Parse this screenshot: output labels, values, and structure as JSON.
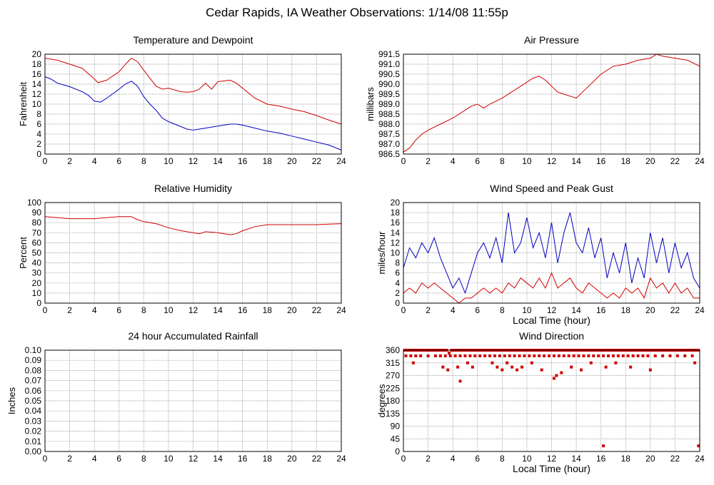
{
  "page": {
    "title": "Cedar Rapids, IA Weather Observations: 1/14/08 11:55p"
  },
  "colors": {
    "temperature": "#d00000",
    "dewpoint": "#0000c0",
    "grid": "#888888"
  },
  "chart_data": [
    {
      "id": "temp",
      "type": "line",
      "title": "Temperature and Dewpoint",
      "ylabel": "Fahrenheit",
      "xlabel": "",
      "xlim": [
        0,
        24
      ],
      "ylim": [
        0,
        20
      ],
      "xticks": [
        0,
        2,
        4,
        6,
        8,
        10,
        12,
        14,
        16,
        18,
        20,
        22,
        24
      ],
      "yticks": [
        0,
        2,
        4,
        6,
        8,
        10,
        12,
        14,
        16,
        18,
        20
      ],
      "ytick_decimals": 0,
      "grid": true,
      "series": [
        {
          "color": "#d00000",
          "x": [
            0,
            1,
            2,
            3,
            3.8,
            4.3,
            5,
            6,
            6.6,
            7,
            7.5,
            8,
            8.5,
            9,
            9.5,
            10,
            11,
            11.5,
            12,
            12.5,
            13,
            13.5,
            14,
            15,
            15.5,
            16,
            17,
            18,
            19,
            20,
            21,
            22,
            23,
            24
          ],
          "y": [
            19.2,
            18.8,
            18,
            17.2,
            15.5,
            14.3,
            14.8,
            16.5,
            18.2,
            19.2,
            18.5,
            16.8,
            15.2,
            13.6,
            13,
            13.2,
            12.5,
            12.4,
            12.5,
            13,
            14.2,
            13,
            14.5,
            14.8,
            14.2,
            13.2,
            11.2,
            10,
            9.6,
            9,
            8.5,
            7.7,
            6.8,
            6
          ]
        },
        {
          "color": "#0000c0",
          "x": [
            0,
            0.5,
            1,
            2,
            3,
            3.5,
            4,
            4.5,
            5,
            6,
            6.5,
            7,
            7.5,
            8,
            8.5,
            9,
            9.5,
            10,
            11,
            11.5,
            12,
            13,
            14,
            15,
            15.5,
            16,
            17,
            18,
            19,
            20,
            21,
            22,
            23,
            24
          ],
          "y": [
            15.5,
            15,
            14.2,
            13.5,
            12.5,
            11.8,
            10.6,
            10.4,
            11.2,
            13,
            14,
            14.6,
            13.6,
            11.5,
            10,
            8.8,
            7.2,
            6.5,
            5.5,
            5,
            4.8,
            5.2,
            5.6,
            6,
            6,
            5.8,
            5.2,
            4.6,
            4.2,
            3.6,
            3,
            2.4,
            1.8,
            0.8
          ]
        }
      ]
    },
    {
      "id": "pressure",
      "type": "line",
      "title": "Air Pressure",
      "ylabel": "millibars",
      "xlabel": "",
      "xlim": [
        0,
        24
      ],
      "ylim": [
        986.5,
        991.5
      ],
      "xticks": [
        0,
        2,
        4,
        6,
        8,
        10,
        12,
        14,
        16,
        18,
        20,
        22,
        24
      ],
      "yticks": [
        986.5,
        987.0,
        987.5,
        988.0,
        988.5,
        989.0,
        989.5,
        990.0,
        990.5,
        991.0,
        991.5
      ],
      "ytick_decimals": 1,
      "grid": true,
      "series": [
        {
          "color": "#d00000",
          "x": [
            0,
            0.5,
            1,
            1.5,
            2,
            3,
            4,
            5,
            5.5,
            6,
            6.5,
            7,
            8,
            9,
            10,
            10.5,
            11,
            11.5,
            12,
            12.5,
            13,
            13.5,
            14,
            14.5,
            15,
            16,
            17,
            18,
            19,
            20,
            20.5,
            21,
            22,
            23,
            24
          ],
          "y": [
            986.6,
            986.8,
            987.2,
            987.5,
            987.7,
            988.0,
            988.3,
            988.7,
            988.9,
            989.0,
            988.8,
            989.0,
            989.3,
            989.7,
            990.1,
            990.3,
            990.4,
            990.2,
            989.9,
            989.6,
            989.5,
            989.4,
            989.3,
            989.6,
            989.9,
            990.5,
            990.9,
            991.0,
            991.2,
            991.3,
            991.5,
            991.4,
            991.3,
            991.2,
            990.9
          ]
        }
      ]
    },
    {
      "id": "humidity",
      "type": "line",
      "title": "Relative Humidity",
      "ylabel": "Percent",
      "xlabel": "",
      "xlim": [
        0,
        24
      ],
      "ylim": [
        0,
        100
      ],
      "xticks": [
        0,
        2,
        4,
        6,
        8,
        10,
        12,
        14,
        16,
        18,
        20,
        22,
        24
      ],
      "yticks": [
        0,
        10,
        20,
        30,
        40,
        50,
        60,
        70,
        80,
        90,
        100
      ],
      "ytick_decimals": 0,
      "grid": true,
      "series": [
        {
          "color": "#d00000",
          "x": [
            0,
            1,
            2,
            3,
            4,
            5,
            6,
            7,
            7.5,
            8,
            9,
            10,
            11,
            12,
            12.5,
            13,
            14,
            15,
            15.5,
            16,
            17,
            18,
            19,
            20,
            21,
            22,
            23,
            24
          ],
          "y": [
            86,
            85,
            84,
            84,
            84,
            85,
            86,
            86,
            83,
            81,
            79,
            75,
            72,
            70,
            69,
            71,
            70,
            68,
            69,
            72,
            76,
            78,
            78,
            78,
            78,
            78,
            78.5,
            79
          ]
        }
      ]
    },
    {
      "id": "wind",
      "type": "line",
      "title": "Wind Speed and Peak Gust",
      "ylabel": "miles/hour",
      "xlabel": "Local Time (hour)",
      "xlim": [
        0,
        24
      ],
      "ylim": [
        0,
        20
      ],
      "xticks": [
        0,
        2,
        4,
        6,
        8,
        10,
        12,
        14,
        16,
        18,
        20,
        22,
        24
      ],
      "yticks": [
        0,
        2,
        4,
        6,
        8,
        10,
        12,
        14,
        16,
        18,
        20
      ],
      "ytick_decimals": 0,
      "grid": true,
      "series": [
        {
          "color": "#0000c0",
          "x": [
            0,
            0.5,
            1,
            1.5,
            2,
            2.5,
            3,
            3.5,
            4,
            4.5,
            5,
            5.5,
            6,
            6.5,
            7,
            7.5,
            8,
            8.5,
            9,
            9.5,
            10,
            10.5,
            11,
            11.5,
            12,
            12.5,
            13,
            13.5,
            14,
            14.5,
            15,
            15.5,
            16,
            16.5,
            17,
            17.5,
            18,
            18.5,
            19,
            19.5,
            20,
            20.5,
            21,
            21.5,
            22,
            22.5,
            23,
            23.5,
            24
          ],
          "y": [
            7,
            11,
            9,
            12,
            10,
            13,
            9,
            6,
            3,
            5,
            2,
            6,
            10,
            12,
            9,
            13,
            8,
            18,
            10,
            12,
            17,
            11,
            14,
            9,
            16,
            8,
            14,
            18,
            12,
            10,
            15,
            9,
            13,
            5,
            10,
            6,
            12,
            4,
            9,
            5,
            14,
            8,
            13,
            6,
            12,
            7,
            10,
            5,
            3
          ]
        },
        {
          "color": "#d00000",
          "x": [
            0,
            0.5,
            1,
            1.5,
            2,
            2.5,
            3,
            3.5,
            4,
            4.5,
            5,
            5.5,
            6,
            6.5,
            7,
            7.5,
            8,
            8.5,
            9,
            9.5,
            10,
            10.5,
            11,
            11.5,
            12,
            12.5,
            13,
            13.5,
            14,
            14.5,
            15,
            15.5,
            16,
            16.5,
            17,
            17.5,
            18,
            18.5,
            19,
            19.5,
            20,
            20.5,
            21,
            21.5,
            22,
            22.5,
            23,
            23.5,
            24
          ],
          "y": [
            2,
            3,
            2,
            4,
            3,
            4,
            3,
            2,
            1,
            0,
            1,
            1,
            2,
            3,
            2,
            3,
            2,
            4,
            3,
            5,
            4,
            3,
            5,
            3,
            6,
            3,
            4,
            5,
            3,
            2,
            4,
            3,
            2,
            1,
            2,
            1,
            3,
            2,
            3,
            1,
            5,
            3,
            4,
            2,
            4,
            2,
            3,
            1,
            1
          ]
        }
      ]
    },
    {
      "id": "rain",
      "type": "line",
      "title": "24 hour Accumulated Rainfall",
      "ylabel": "Inches",
      "xlabel": "",
      "xlim": [
        0,
        24
      ],
      "ylim": [
        0,
        0.1
      ],
      "xticks": [
        0,
        2,
        4,
        6,
        8,
        10,
        12,
        14,
        16,
        18,
        20,
        22,
        24
      ],
      "yticks": [
        0,
        0.01,
        0.02,
        0.03,
        0.04,
        0.05,
        0.06,
        0.07,
        0.08,
        0.09,
        0.1
      ],
      "ytick_decimals": 2,
      "grid": true,
      "series": [
        {
          "color": "#d00000",
          "x": [
            0,
            24
          ],
          "y": [
            0,
            0
          ]
        }
      ]
    },
    {
      "id": "winddir",
      "type": "scatter",
      "title": "Wind Direction",
      "ylabel": "degrees",
      "xlabel": "Local Time (hour)",
      "xlim": [
        0,
        24
      ],
      "ylim": [
        0,
        360
      ],
      "xticks": [
        0,
        2,
        4,
        6,
        8,
        10,
        12,
        14,
        16,
        18,
        20,
        22,
        24
      ],
      "yticks": [
        0,
        45,
        90,
        135,
        180,
        225,
        270,
        315,
        360
      ],
      "ytick_decimals": 0,
      "grid": true,
      "series": [
        {
          "color": "#d00000",
          "x": [
            0.1,
            0.3,
            0.5,
            0.7,
            0.9,
            1.1,
            1.3,
            1.5,
            1.7,
            1.9,
            2.1,
            2.3,
            2.5,
            2.7,
            2.9,
            3.1,
            3.3,
            3.5,
            3.7,
            3.9,
            4.1,
            4.3,
            4.5,
            4.7,
            4.9,
            5.1,
            5.3,
            5.5,
            5.7,
            5.9,
            6.1,
            6.3,
            6.5,
            6.7,
            6.9,
            7.1,
            7.3,
            7.5,
            7.7,
            7.9,
            8.1,
            8.3,
            8.5,
            8.7,
            8.9,
            9.1,
            9.3,
            9.5,
            9.7,
            9.9,
            10.1,
            10.3,
            10.5,
            10.7,
            10.9,
            11.1,
            11.3,
            11.5,
            11.7,
            11.9,
            12.1,
            12.3,
            12.5,
            12.7,
            12.9,
            13.1,
            13.3,
            13.5,
            13.7,
            13.9,
            14.1,
            14.3,
            14.5,
            14.7,
            14.9,
            15.1,
            15.3,
            15.5,
            15.7,
            15.9,
            16.1,
            16.3,
            16.5,
            16.7,
            16.9,
            17.1,
            17.3,
            17.5,
            17.7,
            17.9,
            18.1,
            18.3,
            18.5,
            18.7,
            18.9,
            19.1,
            19.3,
            19.5,
            19.7,
            19.9,
            20.1,
            20.3,
            20.5,
            20.7,
            20.9,
            21.1,
            21.3,
            21.5,
            21.7,
            21.9,
            22.1,
            22.3,
            22.5,
            22.7,
            22.9,
            23.1,
            23.3,
            23.5,
            23.7,
            23.9,
            0.2,
            0.6,
            1.0,
            1.4,
            2.0,
            2.6,
            3.0,
            3.4,
            3.8,
            4.2,
            4.6,
            5.0,
            5.4,
            5.8,
            6.2,
            6.6,
            7.0,
            7.4,
            7.8,
            8.2,
            8.6,
            9.0,
            9.4,
            9.8,
            10.2,
            10.6,
            11.0,
            11.4,
            11.8,
            12.2,
            12.6,
            13.0,
            13.4,
            13.8,
            14.2,
            14.6,
            15.0,
            15.4,
            15.8,
            16.2,
            16.6,
            17.0,
            17.4,
            17.8,
            18.2,
            18.6,
            19.0,
            19.4,
            19.8,
            20.4,
            21.0,
            21.6,
            22.2,
            22.8,
            23.4,
            0.8,
            3.2,
            3.6,
            4.4,
            5.2,
            5.6,
            7.2,
            7.6,
            8.0,
            8.4,
            8.8,
            9.2,
            9.6,
            10.4,
            11.2,
            12.4,
            12.8,
            13.6,
            14.4,
            15.2,
            16.4,
            17.2,
            18.4,
            20.0,
            23.6,
            4.6,
            12.2,
            16.2,
            23.9
          ],
          "y": [
            360,
            360,
            360,
            360,
            360,
            360,
            360,
            360,
            360,
            360,
            360,
            360,
            360,
            360,
            360,
            360,
            360,
            360,
            350,
            360,
            360,
            360,
            360,
            360,
            360,
            360,
            360,
            360,
            360,
            360,
            360,
            360,
            360,
            360,
            360,
            360,
            360,
            360,
            360,
            360,
            360,
            360,
            360,
            360,
            360,
            360,
            360,
            360,
            360,
            360,
            360,
            360,
            360,
            360,
            360,
            360,
            360,
            360,
            360,
            360,
            360,
            360,
            360,
            360,
            360,
            360,
            360,
            360,
            360,
            360,
            360,
            360,
            360,
            360,
            360,
            360,
            360,
            360,
            360,
            360,
            360,
            360,
            360,
            360,
            360,
            360,
            360,
            360,
            360,
            360,
            360,
            360,
            360,
            360,
            360,
            360,
            360,
            360,
            360,
            360,
            360,
            360,
            360,
            360,
            360,
            360,
            360,
            360,
            360,
            360,
            360,
            360,
            360,
            360,
            360,
            360,
            360,
            360,
            360,
            360,
            340,
            340,
            340,
            340,
            340,
            340,
            340,
            340,
            340,
            340,
            340,
            340,
            340,
            340,
            340,
            340,
            340,
            340,
            340,
            340,
            340,
            340,
            340,
            340,
            340,
            340,
            340,
            340,
            340,
            340,
            340,
            340,
            340,
            340,
            340,
            340,
            340,
            340,
            340,
            340,
            340,
            340,
            340,
            340,
            340,
            340,
            340,
            340,
            340,
            340,
            340,
            340,
            340,
            340,
            340,
            315,
            300,
            290,
            300,
            315,
            300,
            315,
            300,
            290,
            315,
            300,
            290,
            300,
            315,
            290,
            270,
            280,
            300,
            290,
            315,
            300,
            315,
            300,
            290,
            315,
            250,
            260,
            20,
            20
          ]
        }
      ]
    }
  ]
}
